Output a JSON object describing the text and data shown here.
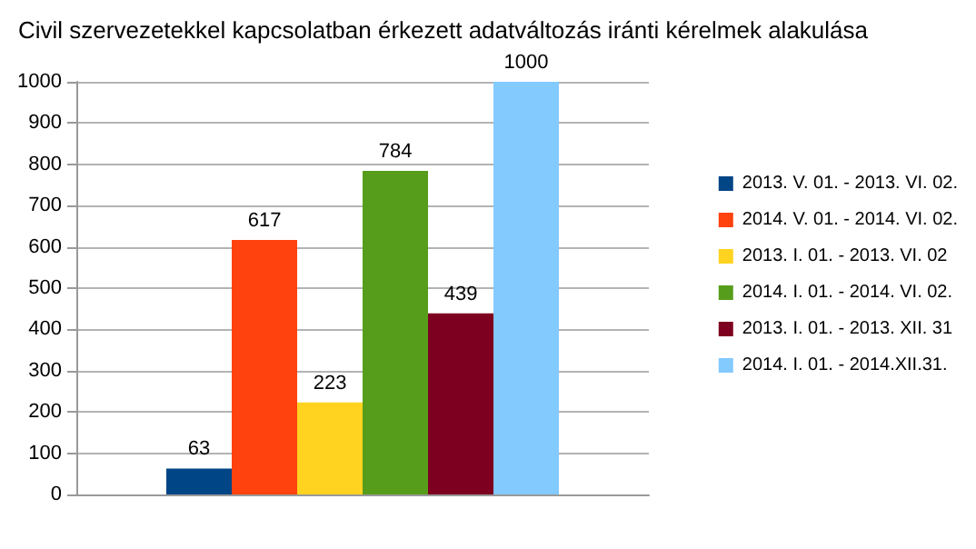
{
  "chart_data": {
    "type": "bar",
    "title": "Civil szervezetekkel kapcsolatban érkezett adatváltozás iránti kérelmek alakulása",
    "categories": [
      null
    ],
    "series": [
      {
        "name": "2013. V. 01. - 2013. VI. 02.",
        "color": "#004586",
        "values": [
          63
        ]
      },
      {
        "name": "2014. V. 01. - 2014. VI. 02.",
        "color": "#ff420e",
        "values": [
          617
        ]
      },
      {
        "name": "2013. I. 01. - 2013. VI. 02",
        "color": "#ffd320",
        "values": [
          223
        ]
      },
      {
        "name": "2014. I. 01. - 2014. VI. 02.",
        "color": "#579d1c",
        "values": [
          784
        ]
      },
      {
        "name": "2013. I. 01. - 2013. XII. 31",
        "color": "#7e0021",
        "values": [
          439
        ]
      },
      {
        "name": "2014. I. 01. - 2014.XII.31.",
        "color": "#83caff",
        "values": [
          1000
        ]
      }
    ],
    "ylim": [
      0,
      1000
    ],
    "yticks": [
      0,
      100,
      200,
      300,
      400,
      500,
      600,
      700,
      800,
      900,
      1000
    ],
    "grid": true,
    "legend": "right",
    "data_labels": true
  }
}
